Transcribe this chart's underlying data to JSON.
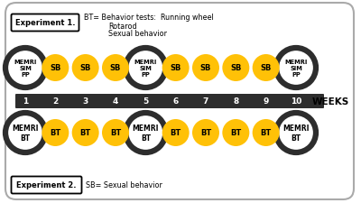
{
  "title_top_box": "Experiment 1.",
  "title_top_line1": "BT= Behavior tests:  Running wheel",
  "title_top_line2": "Rotarod",
  "title_top_line3": "Sexual behavior",
  "title_bottom_box": "Experiment 2.",
  "title_bottom_text": "SB= Sexual behavior",
  "weeks": [
    1,
    2,
    3,
    4,
    5,
    6,
    7,
    8,
    9,
    10
  ],
  "week_label": "WEEKS",
  "row1_large_weeks": [
    1,
    5,
    10
  ],
  "row1_large_label": "MEMRI\nBT",
  "row1_small_weeks": [
    2,
    3,
    4,
    6,
    7,
    8,
    9
  ],
  "row1_small_label": "BT",
  "row2_large_weeks": [
    1,
    5,
    10
  ],
  "row2_large_label": "MEMRI\nSIM\nPP",
  "row2_small_weeks": [
    2,
    3,
    4,
    6,
    7,
    8,
    9
  ],
  "row2_small_label": "SB",
  "bar_color": "#2d2d2d",
  "yellow_color": "#FFC107",
  "dark_circle_edge": "#2d2d2d",
  "white_circle_face": "#ffffff",
  "background": "#ffffff"
}
